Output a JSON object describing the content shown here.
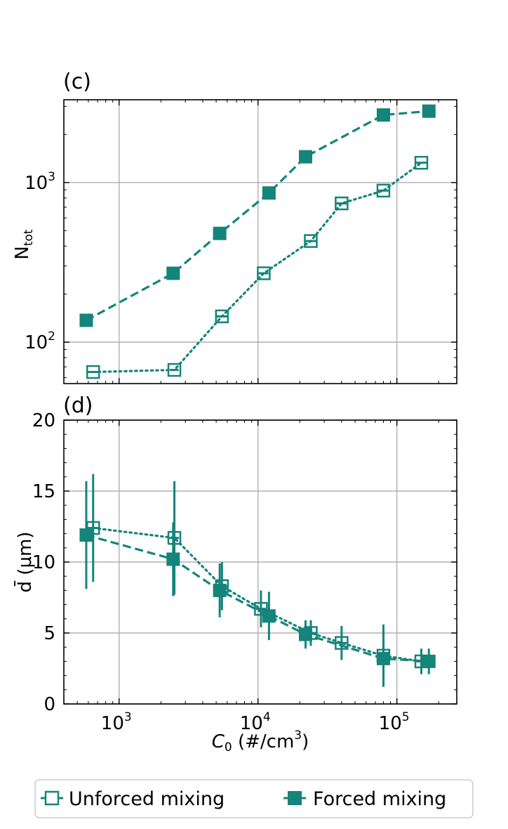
{
  "colors": {
    "series": "#15847a",
    "grid": "#b0b0b0",
    "axis": "#000000"
  },
  "chart_data": [
    {
      "panel_label": "(c)",
      "type": "scatter",
      "xscale": "log",
      "yscale": "log",
      "xlim": [
        400,
        270000
      ],
      "ylim": [
        55,
        3300
      ],
      "ylabel_main": "N",
      "ylabel_sub": "tot",
      "xticks": [
        1000,
        10000,
        100000
      ],
      "yticks": [
        {
          "value": 100,
          "base": "10",
          "exp": "2"
        },
        {
          "value": 1000,
          "base": "10",
          "exp": "3"
        }
      ],
      "grid": true,
      "series": [
        {
          "name": "Unforced mixing",
          "marker": "open-square",
          "linestyle": "dotted",
          "x": [
            650,
            2500,
            5500,
            11000,
            24000,
            40000,
            80000,
            150000
          ],
          "y": [
            65,
            67,
            145,
            270,
            430,
            740,
            890,
            1330
          ],
          "xerr": [
            60,
            180,
            550,
            900,
            2500,
            3500,
            7000,
            14000
          ]
        },
        {
          "name": "Forced mixing",
          "marker": "filled-square",
          "linestyle": "dashed",
          "x": [
            580,
            2450,
            5300,
            12000,
            22000,
            80000,
            170000
          ],
          "y": [
            137,
            270,
            480,
            860,
            1450,
            2650,
            2800
          ],
          "xerr": [
            0,
            0,
            0,
            0,
            0,
            0,
            15000
          ]
        }
      ]
    },
    {
      "panel_label": "(d)",
      "type": "scatter",
      "xscale": "log",
      "yscale": "linear",
      "xlim": [
        400,
        270000
      ],
      "ylim": [
        0,
        20
      ],
      "ylabel": "d̄ (μm)",
      "xlabel_var": "C",
      "xlabel_sub": "0",
      "xlabel_units": " (#/cm",
      "xlabel_sup": "3",
      "xlabel_close": ")",
      "xticks": [
        {
          "value": 1000,
          "base": "10",
          "exp": "3"
        },
        {
          "value": 10000,
          "base": "10",
          "exp": "4"
        },
        {
          "value": 100000,
          "base": "10",
          "exp": "5"
        }
      ],
      "yticks": [
        "0",
        "5",
        "10",
        "15",
        "20"
      ],
      "grid": true,
      "series": [
        {
          "name": "Unforced mixing",
          "marker": "open-square",
          "linestyle": "dotted",
          "x": [
            650,
            2500,
            5500,
            10500,
            24000,
            40000,
            80000,
            150000
          ],
          "y": [
            12.4,
            11.7,
            8.3,
            6.7,
            5.0,
            4.3,
            3.4,
            3.0
          ],
          "yerr": [
            3.8,
            4.0,
            1.7,
            1.3,
            0.9,
            1.2,
            2.2,
            0.9
          ],
          "xerr": [
            60,
            200,
            500,
            900,
            2500,
            3500,
            7000,
            14000
          ]
        },
        {
          "name": "Forced mixing",
          "marker": "filled-square",
          "linestyle": "dashed",
          "x": [
            580,
            2450,
            5300,
            12000,
            22000,
            80000,
            170000
          ],
          "y": [
            11.9,
            10.2,
            8.0,
            6.2,
            4.9,
            3.2,
            3.0
          ],
          "yerr": [
            3.8,
            2.6,
            1.9,
            1.7,
            1.0,
            1.9,
            0.9
          ],
          "xerr": [
            0,
            0,
            0,
            0,
            0,
            0,
            15000
          ]
        }
      ]
    }
  ],
  "legend": {
    "items": [
      {
        "label": "Unforced mixing",
        "marker": "open-square"
      },
      {
        "label": "Forced mixing",
        "marker": "filled-square"
      }
    ]
  }
}
